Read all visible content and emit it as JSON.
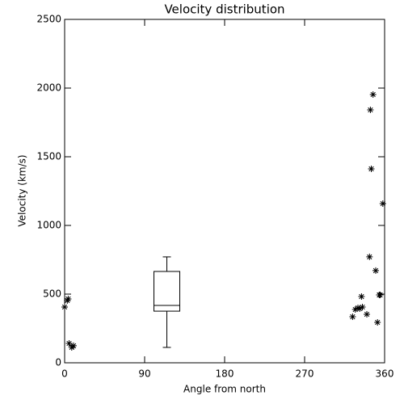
{
  "chart_data": {
    "type": "scatter",
    "title": "Velocity distribution",
    "x_label": "Angle from north",
    "y_label": "Velocity (km/s)",
    "x": [
      0,
      3,
      4,
      5,
      8,
      10,
      324,
      327,
      330,
      332,
      334,
      335,
      340,
      343,
      344,
      345,
      347,
      350,
      352,
      354,
      355,
      358
    ],
    "values": [
      406,
      453,
      465,
      141,
      112,
      124,
      335,
      388,
      400,
      394,
      482,
      406,
      353,
      771,
      1841,
      1412,
      1953,
      671,
      294,
      494,
      494,
      1159
    ],
    "color": "#000000",
    "box": {
      "x": 115,
      "min": 112,
      "q1": 376,
      "median": 418,
      "q3": 665,
      "max": 771
    },
    "xlim": [
      0,
      360
    ],
    "xticks": [
      0,
      90,
      180,
      270,
      360
    ],
    "ylim": [
      0,
      2500
    ],
    "yticks": [
      0,
      500,
      1000,
      1500,
      2000,
      2500
    ]
  }
}
